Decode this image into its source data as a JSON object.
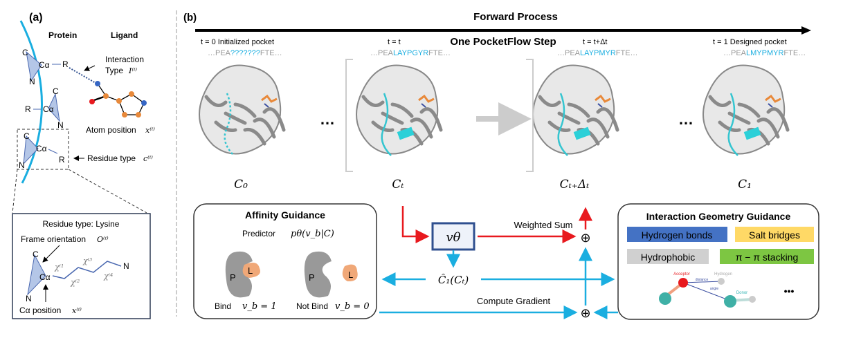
{
  "panel_a": {
    "label": "(a)",
    "protein_label": "Protein",
    "ligand_label": "Ligand",
    "atom_C": "C",
    "atom_N": "N",
    "atom_Ca": "Cα",
    "atom_R": "R",
    "interaction_type": "Interaction",
    "interaction_type_2": "Type",
    "interaction_symbol": "I⁽ⁱ⁾",
    "atom_position": "Atom position",
    "atom_position_symbol": "x⁽ⁱ⁾",
    "residue_type": "Residue type",
    "residue_type_symbol": "c⁽ⁱ⁾",
    "inset": {
      "title": "Residue type: Lysine",
      "frame_orientation": "Frame orientation",
      "frame_symbol": "O⁽ⁱ⁾",
      "ca_position": "Cα position",
      "ca_symbol": "x⁽ⁱ⁾",
      "chi": [
        "χⁱ¹",
        "χⁱ²",
        "χⁱ³",
        "χⁱ⁴"
      ],
      "end_atom": "N"
    }
  },
  "panel_b": {
    "label": "(b)",
    "forward_process": "Forward Process",
    "one_step": "One PocketFlow Step",
    "states": [
      {
        "time": "t = 0 Initialized pocket",
        "seq_pre": "…PEA",
        "seq_mid": "???????",
        "seq_post": "FTE…",
        "symbol": "C₀"
      },
      {
        "time": "t = t",
        "seq_pre": "…PEA",
        "seq_mid": "LAYPGYR",
        "seq_post": "FTE…",
        "symbol": "Cₜ"
      },
      {
        "time": "t = t+Δt",
        "seq_pre": "…PEA",
        "seq_mid": "LAYPMYR",
        "seq_post": "FTE…",
        "symbol": "Cₜ₊Δₜ"
      },
      {
        "time": "t = 1 Designed pocket",
        "seq_pre": "…PEA",
        "seq_mid": "LMYPMYR",
        "seq_post": "FTE…",
        "symbol": "C₁"
      }
    ],
    "ellipsis": "…",
    "affinity": {
      "title": "Affinity Guidance",
      "predictor": "Predictor",
      "predictor_symbol": "pθ(v_b|C)",
      "P": "P",
      "L": "L",
      "bind": "Bind",
      "bind_symbol": "v_b = 1",
      "not_bind": "Not Bind",
      "not_bind_symbol": "v_b = 0"
    },
    "v_theta": "vθ",
    "c_hat": "Ĉ₁(Cₜ)",
    "weighted_sum": "Weighted Sum",
    "compute_gradient": "Compute Gradient",
    "plus": "⊕",
    "interaction": {
      "title": "Interaction Geometry Guidance",
      "tags": [
        {
          "label": "Hydrogen bonds",
          "color": "#4472c4"
        },
        {
          "label": "Salt bridges",
          "color": "#ffd966"
        },
        {
          "label": "Hydrophobic",
          "color": "#d0d0d0"
        },
        {
          "label": "π − π stacking",
          "color": "#7dc642"
        }
      ],
      "acceptor": "Acceptor",
      "hydrogen": "Hydrogen",
      "donor": "Donor",
      "distance": "distance",
      "angle": "angle",
      "more": "•••"
    }
  },
  "colors": {
    "cyan": "#1aaee0",
    "red": "#e8191e",
    "teal": "#35b5b5",
    "box_border": "#2f4f8f",
    "orange": "#f0a878",
    "gray": "#999999"
  }
}
